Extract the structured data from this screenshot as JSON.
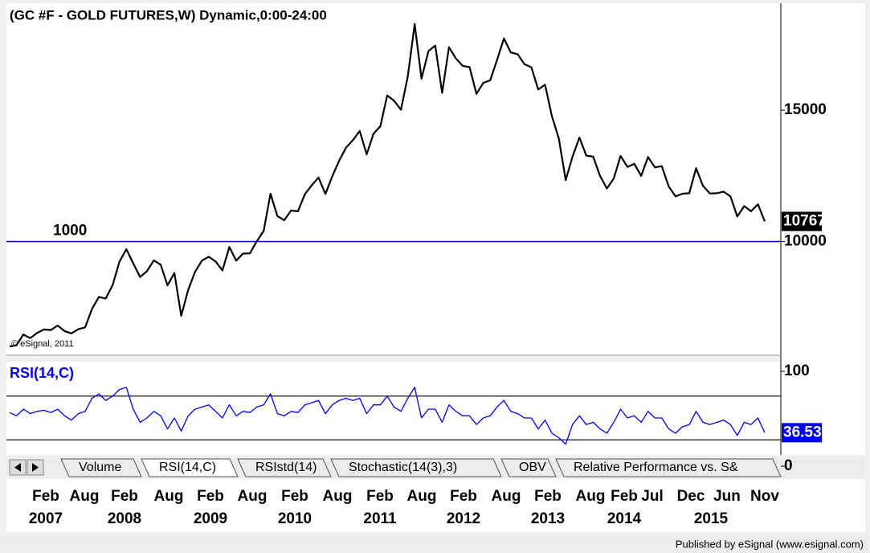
{
  "chart_data": [
    {
      "type": "line",
      "title": "(GC #F - GOLD FUTURES,W) Dynamic,0:00-24:00",
      "copyright": "© eSignal, 2011",
      "color": "#000000",
      "ylim": [
        5730,
        18890
      ],
      "yticks": [
        10000,
        15000
      ],
      "level_line": 10000,
      "level_label": "1000",
      "level_color": "#0000cc",
      "values": [
        6000,
        6050,
        6460,
        6320,
        6520,
        6650,
        6630,
        6800,
        6590,
        6500,
        6660,
        6730,
        7430,
        7890,
        7830,
        8340,
        9230,
        9710,
        9170,
        8650,
        8870,
        9280,
        9120,
        8330,
        8800,
        7170,
        8150,
        8840,
        9270,
        9420,
        9240,
        8900,
        9790,
        9270,
        9540,
        9550,
        10010,
        10400,
        11820,
        10970,
        10810,
        11180,
        11150,
        11800,
        12140,
        12440,
        11810,
        12480,
        13080,
        13570,
        13860,
        14210,
        13320,
        14100,
        14390,
        15560,
        15360,
        15020,
        16280,
        18280,
        16200,
        17250,
        17460,
        15660,
        17400,
        16970,
        16690,
        16640,
        15620,
        16040,
        16140,
        16910,
        17730,
        17200,
        17130,
        16750,
        16630,
        15790,
        15970,
        14760,
        13930,
        12340,
        13230,
        13960,
        13270,
        13230,
        12500,
        12020,
        12400,
        13260,
        12840,
        12960,
        12500,
        13220,
        12820,
        12870,
        12100,
        11720,
        11820,
        11840,
        12790,
        12120,
        11830,
        11840,
        11900,
        11720,
        10950,
        11350,
        11150,
        11420,
        10767
      ]
    },
    {
      "type": "line",
      "title": "RSI(14,C)",
      "color": "#0000ff",
      "ylim": [
        0,
        100
      ],
      "yticks": [
        0,
        100
      ],
      "levels": [
        30,
        70
      ],
      "values": [
        55,
        52,
        58,
        54,
        56,
        57,
        55,
        58,
        52,
        48,
        54,
        56,
        68,
        72,
        66,
        70,
        76,
        78,
        58,
        46,
        50,
        56,
        52,
        40,
        50,
        38,
        52,
        58,
        60,
        62,
        56,
        50,
        62,
        52,
        56,
        55,
        60,
        62,
        72,
        54,
        52,
        56,
        55,
        62,
        64,
        66,
        54,
        62,
        66,
        68,
        66,
        68,
        54,
        62,
        62,
        70,
        60,
        56,
        68,
        78,
        50,
        58,
        58,
        46,
        62,
        56,
        52,
        52,
        44,
        50,
        52,
        60,
        66,
        56,
        54,
        50,
        50,
        40,
        48,
        36,
        32,
        26,
        44,
        52,
        44,
        46,
        40,
        36,
        46,
        58,
        50,
        52,
        46,
        56,
        50,
        50,
        40,
        36,
        42,
        44,
        56,
        46,
        44,
        46,
        48,
        44,
        34,
        46,
        44,
        50,
        36.53
      ]
    }
  ],
  "x_labels": {
    "months": [
      "Feb",
      "Aug",
      "Feb",
      "Aug",
      "Feb",
      "Aug",
      "Feb",
      "Aug",
      "Feb",
      "Aug",
      "Feb",
      "Aug",
      "Feb",
      "Aug",
      "Feb",
      "Jul",
      "Dec",
      "Jun",
      "Nov"
    ],
    "years": [
      "2007",
      "2008",
      "2009",
      "2010",
      "2011",
      "2012",
      "2013",
      "2014",
      "2015"
    ]
  },
  "tabs": [
    "Volume",
    "RSI(14,C)",
    "RSIstd(14)",
    "Stochastic(14(3),3)",
    "OBV",
    "Relative Performance vs. S&"
  ],
  "footer": "Published by eSignal (www.esignal.com)"
}
